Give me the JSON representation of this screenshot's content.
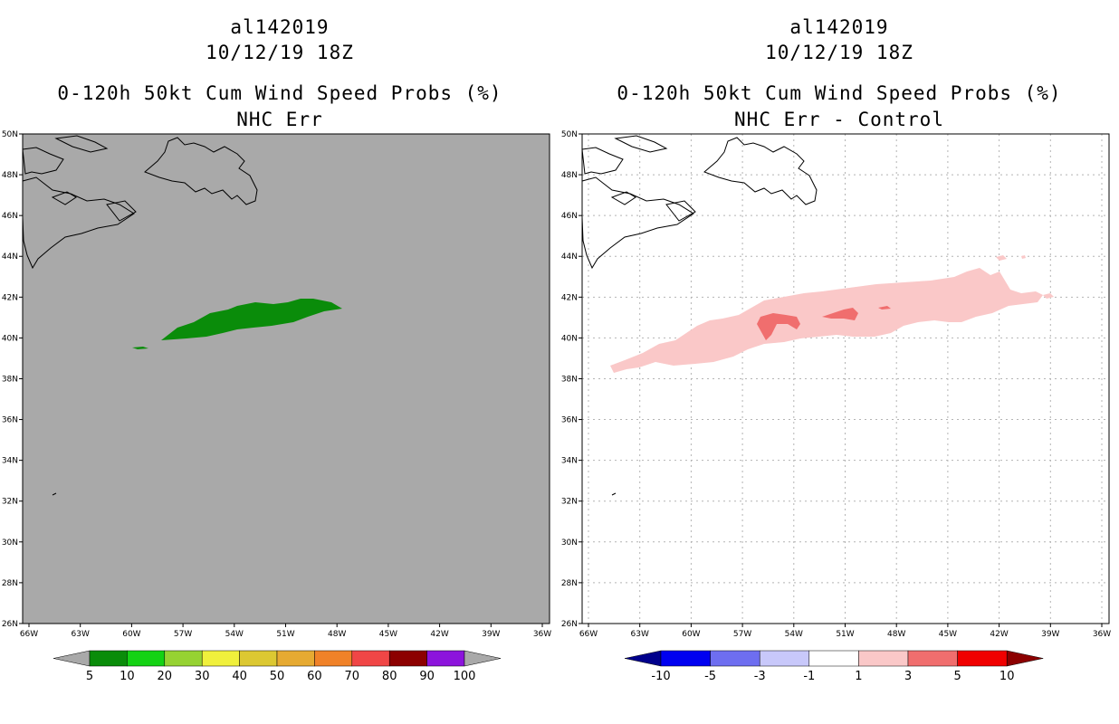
{
  "panels": {
    "left": {
      "storm_id": "al142019",
      "datetime": "10/12/19 18Z",
      "product": "0-120h 50kt Cum Wind Speed Probs (%)",
      "subtitle": "NHC Err",
      "background_color": "#a9a9a9",
      "colorbar": {
        "labels": [
          "5",
          "10",
          "20",
          "30",
          "40",
          "50",
          "60",
          "70",
          "80",
          "90",
          "100"
        ],
        "colors": [
          "#a9a9a9",
          "#0a8c0a",
          "#14d214",
          "#96d232",
          "#f0f03c",
          "#dcc832",
          "#e6aa32",
          "#f08228",
          "#f04646",
          "#8c0000",
          "#8c14dc",
          "#a9a9a9"
        ]
      }
    },
    "right": {
      "storm_id": "al142019",
      "datetime": "10/12/19 18Z",
      "product": "0-120h 50kt Cum Wind Speed Probs (%)",
      "subtitle": "NHC Err - Control",
      "background_color": "#ffffff",
      "colorbar": {
        "labels": [
          "-10",
          "-5",
          "-3",
          "-1",
          "1",
          "3",
          "5",
          "10"
        ],
        "colors": [
          "#00008c",
          "#0000f0",
          "#6e6ef0",
          "#c8c8fa",
          "#ffffff",
          "#fac8c8",
          "#f06e6e",
          "#f00000",
          "#8c0000"
        ]
      }
    }
  },
  "axes": {
    "lon_labels": [
      "66W",
      "63W",
      "60W",
      "57W",
      "54W",
      "51W",
      "48W",
      "45W",
      "42W",
      "39W",
      "36W"
    ],
    "lat_labels": [
      "50N",
      "48N",
      "46N",
      "44N",
      "42N",
      "40N",
      "38N",
      "36N",
      "34N",
      "32N",
      "30N",
      "28N",
      "26N"
    ],
    "lon_range": [
      -66,
      -36
    ],
    "lat_range": [
      26,
      50
    ]
  }
}
